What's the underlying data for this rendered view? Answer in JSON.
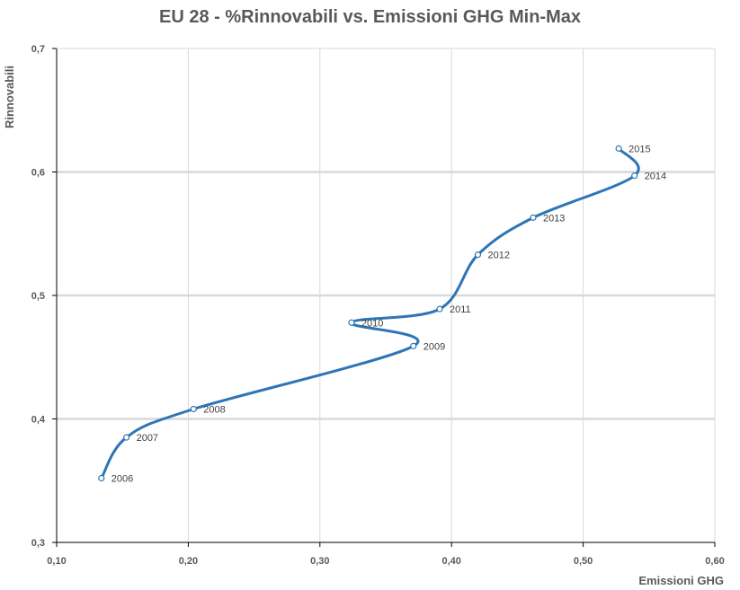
{
  "chart_data": {
    "type": "scatter",
    "title": "EU 28 - %Rinnovabili vs. Emissioni GHG Min-Max",
    "xlabel": "Emissioni GHG",
    "ylabel": "Rinnovabili",
    "xlim": [
      0.1,
      0.6
    ],
    "ylim": [
      0.3,
      0.7
    ],
    "x_ticks": [
      "0,10",
      "0,20",
      "0,30",
      "0,40",
      "0,50",
      "0,60"
    ],
    "y_ticks": [
      "0,3",
      "0,4",
      "0,5",
      "0,6",
      "0,7"
    ],
    "x_tick_values": [
      0.1,
      0.2,
      0.3,
      0.4,
      0.5,
      0.6
    ],
    "y_tick_values": [
      0.3,
      0.4,
      0.5,
      0.6,
      0.7
    ],
    "line": "smooth",
    "line_color": "#2E75B6",
    "grid": {
      "vertical": true,
      "horizontal": true
    },
    "points": [
      {
        "label": "2006",
        "x": 0.134,
        "y": 0.352
      },
      {
        "label": "2007",
        "x": 0.153,
        "y": 0.385
      },
      {
        "label": "2008",
        "x": 0.204,
        "y": 0.408
      },
      {
        "label": "2009",
        "x": 0.371,
        "y": 0.459
      },
      {
        "label": "2010",
        "x": 0.324,
        "y": 0.478
      },
      {
        "label": "2011",
        "x": 0.391,
        "y": 0.489
      },
      {
        "label": "2012",
        "x": 0.42,
        "y": 0.533
      },
      {
        "label": "2013",
        "x": 0.462,
        "y": 0.563
      },
      {
        "label": "2014",
        "x": 0.539,
        "y": 0.597
      },
      {
        "label": "2015",
        "x": 0.527,
        "y": 0.619
      }
    ]
  }
}
